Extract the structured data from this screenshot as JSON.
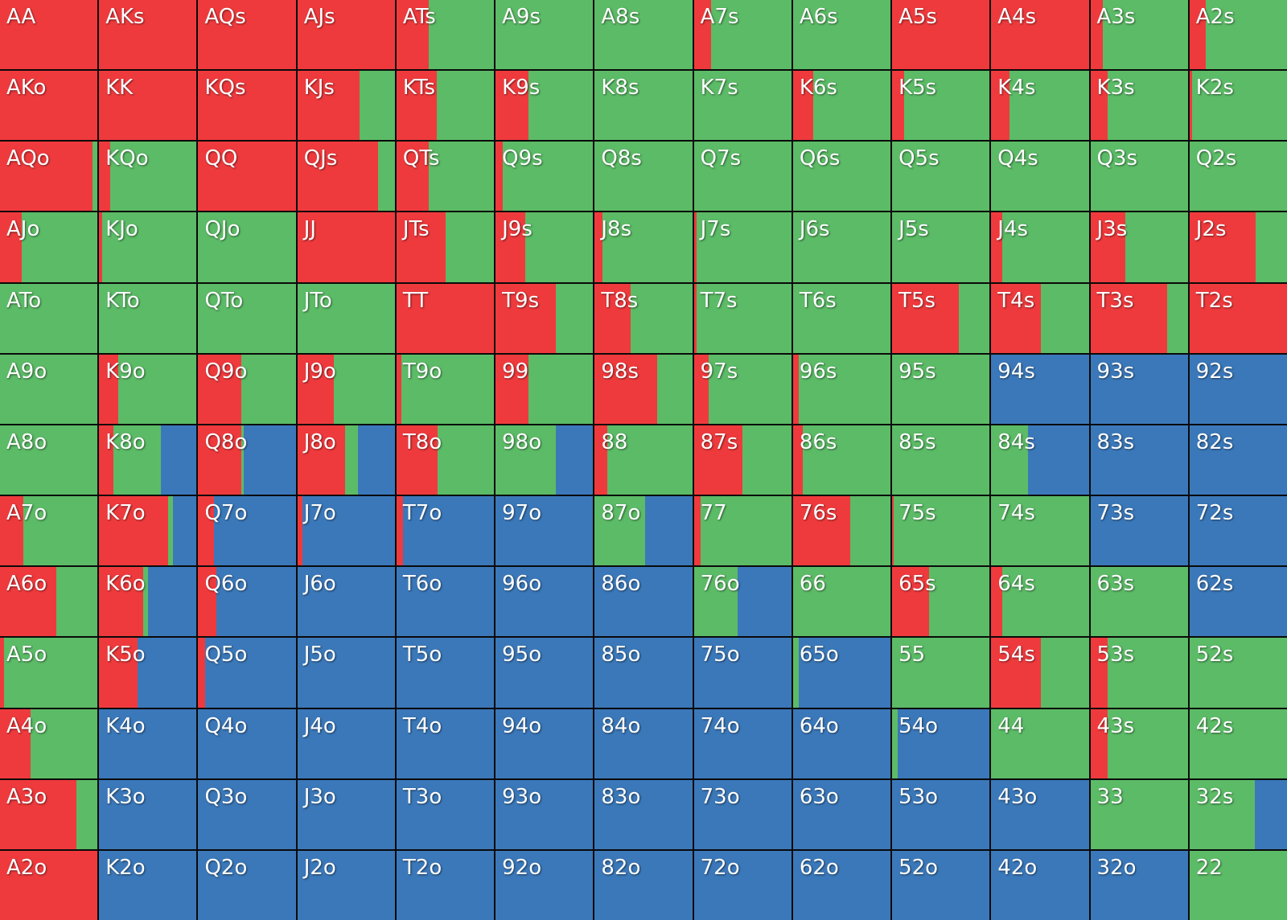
{
  "colors": {
    "raise": "#ef3a3d",
    "call": "#5cbb67",
    "fold": "#3b78b9"
  },
  "chart_data": {
    "type": "heatmap",
    "description_free": true,
    "columns": 13,
    "value_order": [
      "raise",
      "call",
      "fold"
    ],
    "hands": [
      {
        "label": "AA",
        "raise": 1.0,
        "call": 0.0,
        "fold": 0.0
      },
      {
        "label": "AKs",
        "raise": 1.0,
        "call": 0.0,
        "fold": 0.0
      },
      {
        "label": "AQs",
        "raise": 1.0,
        "call": 0.0,
        "fold": 0.0
      },
      {
        "label": "AJs",
        "raise": 1.0,
        "call": 0.0,
        "fold": 0.0
      },
      {
        "label": "ATs",
        "raise": 0.33,
        "call": 0.67,
        "fold": 0.0
      },
      {
        "label": "A9s",
        "raise": 0.0,
        "call": 1.0,
        "fold": 0.0
      },
      {
        "label": "A8s",
        "raise": 0.0,
        "call": 1.0,
        "fold": 0.0
      },
      {
        "label": "A7s",
        "raise": 0.18,
        "call": 0.82,
        "fold": 0.0
      },
      {
        "label": "A6s",
        "raise": 0.0,
        "call": 1.0,
        "fold": 0.0
      },
      {
        "label": "A5s",
        "raise": 1.0,
        "call": 0.0,
        "fold": 0.0
      },
      {
        "label": "A4s",
        "raise": 1.0,
        "call": 0.0,
        "fold": 0.0
      },
      {
        "label": "A3s",
        "raise": 0.13,
        "call": 0.87,
        "fold": 0.0
      },
      {
        "label": "A2s",
        "raise": 0.17,
        "call": 0.83,
        "fold": 0.0
      },
      {
        "label": "AKo",
        "raise": 1.0,
        "call": 0.0,
        "fold": 0.0
      },
      {
        "label": "KK",
        "raise": 1.0,
        "call": 0.0,
        "fold": 0.0
      },
      {
        "label": "KQs",
        "raise": 1.0,
        "call": 0.0,
        "fold": 0.0
      },
      {
        "label": "KJs",
        "raise": 0.64,
        "call": 0.36,
        "fold": 0.0
      },
      {
        "label": "KTs",
        "raise": 0.41,
        "call": 0.59,
        "fold": 0.0
      },
      {
        "label": "K9s",
        "raise": 0.34,
        "call": 0.66,
        "fold": 0.0
      },
      {
        "label": "K8s",
        "raise": 0.0,
        "call": 1.0,
        "fold": 0.0
      },
      {
        "label": "K7s",
        "raise": 0.0,
        "call": 1.0,
        "fold": 0.0
      },
      {
        "label": "K6s",
        "raise": 0.21,
        "call": 0.79,
        "fold": 0.0
      },
      {
        "label": "K5s",
        "raise": 0.12,
        "call": 0.88,
        "fold": 0.0
      },
      {
        "label": "K4s",
        "raise": 0.19,
        "call": 0.81,
        "fold": 0.0
      },
      {
        "label": "K3s",
        "raise": 0.18,
        "call": 0.82,
        "fold": 0.0
      },
      {
        "label": "K2s",
        "raise": 0.03,
        "call": 0.97,
        "fold": 0.0
      },
      {
        "label": "AQo",
        "raise": 0.95,
        "call": 0.05,
        "fold": 0.0
      },
      {
        "label": "KQo",
        "raise": 0.11,
        "call": 0.89,
        "fold": 0.0
      },
      {
        "label": "QQ",
        "raise": 1.0,
        "call": 0.0,
        "fold": 0.0
      },
      {
        "label": "QJs",
        "raise": 0.83,
        "call": 0.17,
        "fold": 0.0
      },
      {
        "label": "QTs",
        "raise": 0.33,
        "call": 0.67,
        "fold": 0.0
      },
      {
        "label": "Q9s",
        "raise": 0.07,
        "call": 0.93,
        "fold": 0.0
      },
      {
        "label": "Q8s",
        "raise": 0.0,
        "call": 1.0,
        "fold": 0.0
      },
      {
        "label": "Q7s",
        "raise": 0.0,
        "call": 1.0,
        "fold": 0.0
      },
      {
        "label": "Q6s",
        "raise": 0.0,
        "call": 1.0,
        "fold": 0.0
      },
      {
        "label": "Q5s",
        "raise": 0.0,
        "call": 1.0,
        "fold": 0.0
      },
      {
        "label": "Q4s",
        "raise": 0.0,
        "call": 1.0,
        "fold": 0.0
      },
      {
        "label": "Q3s",
        "raise": 0.0,
        "call": 1.0,
        "fold": 0.0
      },
      {
        "label": "Q2s",
        "raise": 0.0,
        "call": 1.0,
        "fold": 0.0
      },
      {
        "label": "AJo",
        "raise": 0.22,
        "call": 0.78,
        "fold": 0.0
      },
      {
        "label": "KJo",
        "raise": 0.03,
        "call": 0.97,
        "fold": 0.0
      },
      {
        "label": "QJo",
        "raise": 0.0,
        "call": 1.0,
        "fold": 0.0
      },
      {
        "label": "JJ",
        "raise": 1.0,
        "call": 0.0,
        "fold": 0.0
      },
      {
        "label": "JTs",
        "raise": 0.5,
        "call": 0.5,
        "fold": 0.0
      },
      {
        "label": "J9s",
        "raise": 0.3,
        "call": 0.7,
        "fold": 0.0
      },
      {
        "label": "J8s",
        "raise": 0.08,
        "call": 0.92,
        "fold": 0.0
      },
      {
        "label": "J7s",
        "raise": 0.03,
        "call": 0.97,
        "fold": 0.0
      },
      {
        "label": "J6s",
        "raise": 0.0,
        "call": 1.0,
        "fold": 0.0
      },
      {
        "label": "J5s",
        "raise": 0.0,
        "call": 1.0,
        "fold": 0.0
      },
      {
        "label": "J4s",
        "raise": 0.11,
        "call": 0.89,
        "fold": 0.0
      },
      {
        "label": "J3s",
        "raise": 0.36,
        "call": 0.64,
        "fold": 0.0
      },
      {
        "label": "J2s",
        "raise": 0.68,
        "call": 0.32,
        "fold": 0.0
      },
      {
        "label": "ATo",
        "raise": 0.0,
        "call": 1.0,
        "fold": 0.0
      },
      {
        "label": "KTo",
        "raise": 0.0,
        "call": 1.0,
        "fold": 0.0
      },
      {
        "label": "QTo",
        "raise": 0.0,
        "call": 1.0,
        "fold": 0.0
      },
      {
        "label": "JTo",
        "raise": 0.0,
        "call": 1.0,
        "fold": 0.0
      },
      {
        "label": "TT",
        "raise": 1.0,
        "call": 0.0,
        "fold": 0.0
      },
      {
        "label": "T9s",
        "raise": 0.62,
        "call": 0.38,
        "fold": 0.0
      },
      {
        "label": "T8s",
        "raise": 0.37,
        "call": 0.63,
        "fold": 0.0
      },
      {
        "label": "T7s",
        "raise": 0.03,
        "call": 0.97,
        "fold": 0.0
      },
      {
        "label": "T6s",
        "raise": 0.0,
        "call": 1.0,
        "fold": 0.0
      },
      {
        "label": "T5s",
        "raise": 0.68,
        "call": 0.32,
        "fold": 0.0
      },
      {
        "label": "T4s",
        "raise": 0.51,
        "call": 0.49,
        "fold": 0.0
      },
      {
        "label": "T3s",
        "raise": 0.79,
        "call": 0.21,
        "fold": 0.0
      },
      {
        "label": "T2s",
        "raise": 1.0,
        "call": 0.0,
        "fold": 0.0
      },
      {
        "label": "A9o",
        "raise": 0.0,
        "call": 1.0,
        "fold": 0.0
      },
      {
        "label": "K9o",
        "raise": 0.2,
        "call": 0.8,
        "fold": 0.0
      },
      {
        "label": "Q9o",
        "raise": 0.44,
        "call": 0.56,
        "fold": 0.0
      },
      {
        "label": "J9o",
        "raise": 0.37,
        "call": 0.63,
        "fold": 0.0
      },
      {
        "label": "T9o",
        "raise": 0.05,
        "call": 0.95,
        "fold": 0.0
      },
      {
        "label": "99",
        "raise": 0.34,
        "call": 0.66,
        "fold": 0.0
      },
      {
        "label": "98s",
        "raise": 0.64,
        "call": 0.36,
        "fold": 0.0
      },
      {
        "label": "97s",
        "raise": 0.15,
        "call": 0.85,
        "fold": 0.0
      },
      {
        "label": "96s",
        "raise": 0.06,
        "call": 0.94,
        "fold": 0.0
      },
      {
        "label": "95s",
        "raise": 0.0,
        "call": 1.0,
        "fold": 0.0
      },
      {
        "label": "94s",
        "raise": 0.0,
        "call": 0.0,
        "fold": 1.0
      },
      {
        "label": "93s",
        "raise": 0.0,
        "call": 0.0,
        "fold": 1.0
      },
      {
        "label": "92s",
        "raise": 0.0,
        "call": 0.0,
        "fold": 1.0
      },
      {
        "label": "A8o",
        "raise": 0.0,
        "call": 1.0,
        "fold": 0.0
      },
      {
        "label": "K8o",
        "raise": 0.15,
        "call": 0.48,
        "fold": 0.37
      },
      {
        "label": "Q8o",
        "raise": 0.44,
        "call": 0.03,
        "fold": 0.53
      },
      {
        "label": "J8o",
        "raise": 0.49,
        "call": 0.13,
        "fold": 0.38
      },
      {
        "label": "T8o",
        "raise": 0.42,
        "call": 0.58,
        "fold": 0.0
      },
      {
        "label": "98o",
        "raise": 0.0,
        "call": 0.62,
        "fold": 0.38
      },
      {
        "label": "88",
        "raise": 0.13,
        "call": 0.87,
        "fold": 0.0
      },
      {
        "label": "87s",
        "raise": 0.5,
        "call": 0.5,
        "fold": 0.0
      },
      {
        "label": "86s",
        "raise": 0.1,
        "call": 0.9,
        "fold": 0.0
      },
      {
        "label": "85s",
        "raise": 0.0,
        "call": 1.0,
        "fold": 0.0
      },
      {
        "label": "84s",
        "raise": 0.0,
        "call": 0.38,
        "fold": 0.62
      },
      {
        "label": "83s",
        "raise": 0.0,
        "call": 0.0,
        "fold": 1.0
      },
      {
        "label": "82s",
        "raise": 0.0,
        "call": 0.0,
        "fold": 1.0
      },
      {
        "label": "A7o",
        "raise": 0.24,
        "call": 0.76,
        "fold": 0.0
      },
      {
        "label": "K7o",
        "raise": 0.71,
        "call": 0.05,
        "fold": 0.24
      },
      {
        "label": "Q7o",
        "raise": 0.16,
        "call": 0.0,
        "fold": 0.84
      },
      {
        "label": "J7o",
        "raise": 0.05,
        "call": 0.0,
        "fold": 0.95
      },
      {
        "label": "T7o",
        "raise": 0.07,
        "call": 0.0,
        "fold": 0.93
      },
      {
        "label": "97o",
        "raise": 0.0,
        "call": 0.0,
        "fold": 1.0
      },
      {
        "label": "87o",
        "raise": 0.0,
        "call": 0.52,
        "fold": 0.48
      },
      {
        "label": "77",
        "raise": 0.07,
        "call": 0.93,
        "fold": 0.0
      },
      {
        "label": "76s",
        "raise": 0.59,
        "call": 0.41,
        "fold": 0.0
      },
      {
        "label": "75s",
        "raise": 0.02,
        "call": 0.98,
        "fold": 0.0
      },
      {
        "label": "74s",
        "raise": 0.0,
        "call": 1.0,
        "fold": 0.0
      },
      {
        "label": "73s",
        "raise": 0.0,
        "call": 0.0,
        "fold": 1.0
      },
      {
        "label": "72s",
        "raise": 0.0,
        "call": 0.0,
        "fold": 1.0
      },
      {
        "label": "A6o",
        "raise": 0.58,
        "call": 0.42,
        "fold": 0.0
      },
      {
        "label": "K6o",
        "raise": 0.45,
        "call": 0.05,
        "fold": 0.5
      },
      {
        "label": "Q6o",
        "raise": 0.19,
        "call": 0.0,
        "fold": 0.81
      },
      {
        "label": "J6o",
        "raise": 0.0,
        "call": 0.0,
        "fold": 1.0
      },
      {
        "label": "T6o",
        "raise": 0.0,
        "call": 0.0,
        "fold": 1.0
      },
      {
        "label": "96o",
        "raise": 0.0,
        "call": 0.0,
        "fold": 1.0
      },
      {
        "label": "86o",
        "raise": 0.0,
        "call": 0.0,
        "fold": 1.0
      },
      {
        "label": "76o",
        "raise": 0.0,
        "call": 0.45,
        "fold": 0.55
      },
      {
        "label": "66",
        "raise": 0.0,
        "call": 1.0,
        "fold": 0.0
      },
      {
        "label": "65s",
        "raise": 0.38,
        "call": 0.62,
        "fold": 0.0
      },
      {
        "label": "64s",
        "raise": 0.11,
        "call": 0.89,
        "fold": 0.0
      },
      {
        "label": "63s",
        "raise": 0.0,
        "call": 1.0,
        "fold": 0.0
      },
      {
        "label": "62s",
        "raise": 0.0,
        "call": 0.0,
        "fold": 1.0
      },
      {
        "label": "A5o",
        "raise": 0.04,
        "call": 0.96,
        "fold": 0.0
      },
      {
        "label": "K5o",
        "raise": 0.39,
        "call": 0.0,
        "fold": 0.61
      },
      {
        "label": "Q5o",
        "raise": 0.07,
        "call": 0.0,
        "fold": 0.93
      },
      {
        "label": "J5o",
        "raise": 0.0,
        "call": 0.0,
        "fold": 1.0
      },
      {
        "label": "T5o",
        "raise": 0.0,
        "call": 0.0,
        "fold": 1.0
      },
      {
        "label": "95o",
        "raise": 0.0,
        "call": 0.0,
        "fold": 1.0
      },
      {
        "label": "85o",
        "raise": 0.0,
        "call": 0.0,
        "fold": 1.0
      },
      {
        "label": "75o",
        "raise": 0.0,
        "call": 0.0,
        "fold": 1.0
      },
      {
        "label": "65o",
        "raise": 0.0,
        "call": 0.06,
        "fold": 0.94
      },
      {
        "label": "55",
        "raise": 0.0,
        "call": 1.0,
        "fold": 0.0
      },
      {
        "label": "54s",
        "raise": 0.51,
        "call": 0.49,
        "fold": 0.0
      },
      {
        "label": "53s",
        "raise": 0.18,
        "call": 0.82,
        "fold": 0.0
      },
      {
        "label": "52s",
        "raise": 0.0,
        "call": 1.0,
        "fold": 0.0
      },
      {
        "label": "A4o",
        "raise": 0.31,
        "call": 0.69,
        "fold": 0.0
      },
      {
        "label": "K4o",
        "raise": 0.0,
        "call": 0.0,
        "fold": 1.0
      },
      {
        "label": "Q4o",
        "raise": 0.0,
        "call": 0.0,
        "fold": 1.0
      },
      {
        "label": "J4o",
        "raise": 0.0,
        "call": 0.0,
        "fold": 1.0
      },
      {
        "label": "T4o",
        "raise": 0.0,
        "call": 0.0,
        "fold": 1.0
      },
      {
        "label": "94o",
        "raise": 0.0,
        "call": 0.0,
        "fold": 1.0
      },
      {
        "label": "84o",
        "raise": 0.0,
        "call": 0.0,
        "fold": 1.0
      },
      {
        "label": "74o",
        "raise": 0.0,
        "call": 0.0,
        "fold": 1.0
      },
      {
        "label": "64o",
        "raise": 0.0,
        "call": 0.0,
        "fold": 1.0
      },
      {
        "label": "54o",
        "raise": 0.0,
        "call": 0.06,
        "fold": 0.94
      },
      {
        "label": "44",
        "raise": 0.0,
        "call": 1.0,
        "fold": 0.0
      },
      {
        "label": "43s",
        "raise": 0.18,
        "call": 0.82,
        "fold": 0.0
      },
      {
        "label": "42s",
        "raise": 0.0,
        "call": 1.0,
        "fold": 0.0
      },
      {
        "label": "A3o",
        "raise": 0.78,
        "call": 0.22,
        "fold": 0.0
      },
      {
        "label": "K3o",
        "raise": 0.0,
        "call": 0.0,
        "fold": 1.0
      },
      {
        "label": "Q3o",
        "raise": 0.0,
        "call": 0.0,
        "fold": 1.0
      },
      {
        "label": "J3o",
        "raise": 0.0,
        "call": 0.0,
        "fold": 1.0
      },
      {
        "label": "T3o",
        "raise": 0.0,
        "call": 0.0,
        "fold": 1.0
      },
      {
        "label": "93o",
        "raise": 0.0,
        "call": 0.0,
        "fold": 1.0
      },
      {
        "label": "83o",
        "raise": 0.0,
        "call": 0.0,
        "fold": 1.0
      },
      {
        "label": "73o",
        "raise": 0.0,
        "call": 0.0,
        "fold": 1.0
      },
      {
        "label": "63o",
        "raise": 0.0,
        "call": 0.0,
        "fold": 1.0
      },
      {
        "label": "53o",
        "raise": 0.0,
        "call": 0.0,
        "fold": 1.0
      },
      {
        "label": "43o",
        "raise": 0.0,
        "call": 0.0,
        "fold": 1.0
      },
      {
        "label": "33",
        "raise": 0.0,
        "call": 1.0,
        "fold": 0.0
      },
      {
        "label": "32s",
        "raise": 0.0,
        "call": 0.67,
        "fold": 0.33
      },
      {
        "label": "A2o",
        "raise": 1.0,
        "call": 0.0,
        "fold": 0.0
      },
      {
        "label": "K2o",
        "raise": 0.0,
        "call": 0.0,
        "fold": 1.0
      },
      {
        "label": "Q2o",
        "raise": 0.0,
        "call": 0.0,
        "fold": 1.0
      },
      {
        "label": "J2o",
        "raise": 0.0,
        "call": 0.0,
        "fold": 1.0
      },
      {
        "label": "T2o",
        "raise": 0.0,
        "call": 0.0,
        "fold": 1.0
      },
      {
        "label": "92o",
        "raise": 0.0,
        "call": 0.0,
        "fold": 1.0
      },
      {
        "label": "82o",
        "raise": 0.0,
        "call": 0.0,
        "fold": 1.0
      },
      {
        "label": "72o",
        "raise": 0.0,
        "call": 0.0,
        "fold": 1.0
      },
      {
        "label": "62o",
        "raise": 0.0,
        "call": 0.0,
        "fold": 1.0
      },
      {
        "label": "52o",
        "raise": 0.0,
        "call": 0.0,
        "fold": 1.0
      },
      {
        "label": "42o",
        "raise": 0.0,
        "call": 0.0,
        "fold": 1.0
      },
      {
        "label": "32o",
        "raise": 0.0,
        "call": 0.0,
        "fold": 1.0
      },
      {
        "label": "22",
        "raise": 0.0,
        "call": 1.0,
        "fold": 0.0
      }
    ]
  }
}
